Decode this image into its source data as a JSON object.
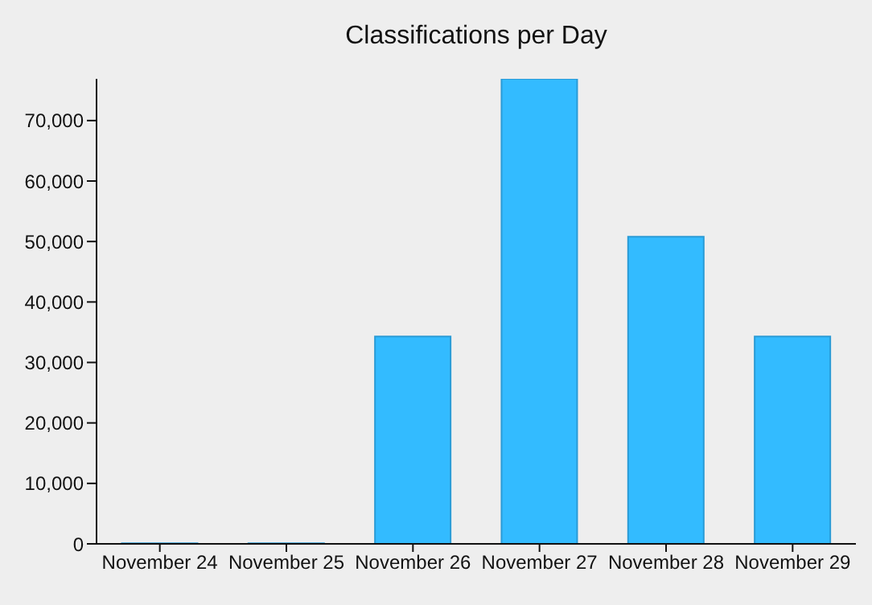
{
  "chart_data": {
    "type": "bar",
    "title": "Classifications per Day",
    "categories": [
      "November 24",
      "November 25",
      "November 26",
      "November 27",
      "November 28",
      "November 29"
    ],
    "values": [
      100,
      100,
      34300,
      76900,
      50800,
      34300
    ],
    "color": "#33bbff",
    "ylim": [
      0,
      76900
    ],
    "yticks": [
      {
        "value": 0,
        "label": "0"
      },
      {
        "value": 10000,
        "label": "10,000"
      },
      {
        "value": 20000,
        "label": "20,000"
      },
      {
        "value": 30000,
        "label": "30,000"
      },
      {
        "value": 40000,
        "label": "40,000"
      },
      {
        "value": 50000,
        "label": "50,000"
      },
      {
        "value": 60000,
        "label": "60,000"
      },
      {
        "value": 70000,
        "label": "70,000"
      }
    ],
    "grid": false
  }
}
